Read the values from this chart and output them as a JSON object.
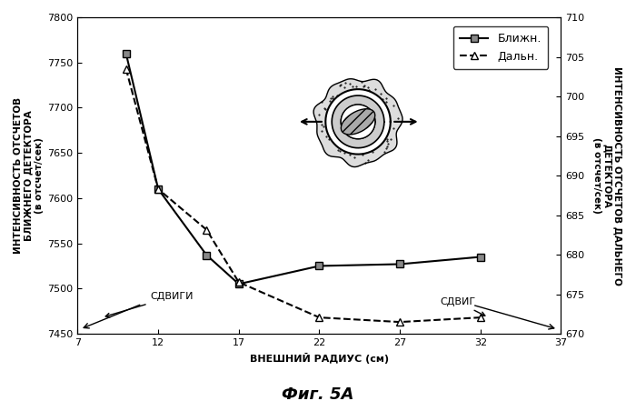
{
  "x_near": [
    10,
    12,
    15,
    17,
    22,
    27,
    32
  ],
  "y_near": [
    7760,
    7610,
    7537,
    7505,
    7525,
    7527,
    7535
  ],
  "x_far": [
    10,
    12,
    15,
    17,
    22,
    27,
    32
  ],
  "y_far": [
    7743,
    7610,
    7565,
    7507,
    7468,
    7463,
    7468
  ],
  "xlim": [
    7,
    37
  ],
  "ylim_left": [
    7450,
    7800
  ],
  "ylim_right": [
    670,
    710
  ],
  "xticks": [
    7,
    12,
    17,
    22,
    27,
    32,
    37
  ],
  "yticks_left": [
    7450,
    7500,
    7550,
    7600,
    7650,
    7700,
    7750,
    7800
  ],
  "yticks_right": [
    670,
    675,
    680,
    685,
    690,
    695,
    700,
    705,
    710
  ],
  "xlabel": "ВНЕШНИЙ РАДИУС (см)",
  "ylabel_left": "ИНТЕНСИВНОСТЬ ОТСЧЕТОВ\nБЛИЖНЕГО ДЕТЕКТОРА\n(в отсчет/сек)",
  "ylabel_right": "ИНТЕНСИВНОСТЬ ОТСЧЕТОВ ДАЛЬНЕГО\nДЕТЕКТОРА\n(в отсчет/сек)",
  "legend_near": "Ближн.",
  "legend_far": "Дальн.",
  "label_shifts_left": "СДВИГИ",
  "label_shift_right": "СДВИГ",
  "title": "Фиг. 5A",
  "bg_color": "#ffffff"
}
